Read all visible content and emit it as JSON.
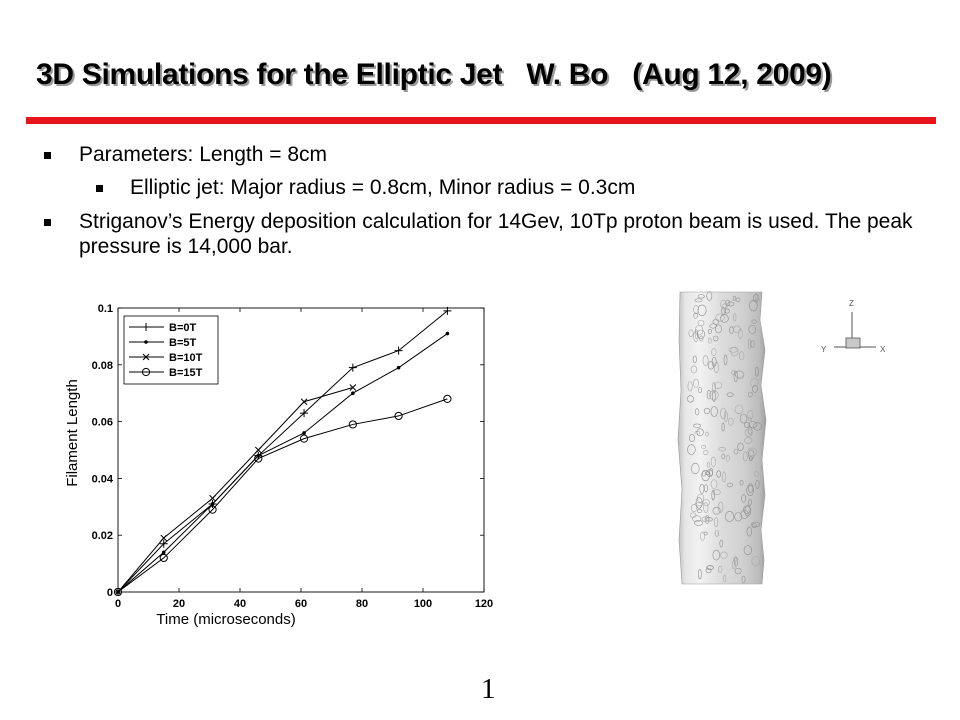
{
  "slide": {
    "title": "3D Simulations for the Elliptic Jet   W. Bo   (Aug 12, 2009)",
    "page_number": "1",
    "accent_color": "#e8141b"
  },
  "bullets": [
    {
      "level": 1,
      "text": "Parameters: Length = 8cm"
    },
    {
      "level": 2,
      "text": "Elliptic jet: Major radius = 0.8cm, Minor radius = 0.3cm"
    },
    {
      "level": 1,
      "text": "Striganov’s Energy deposition calculation for 14Gev, 10Tp proton beam is used. The peak pressure is 14,000 bar."
    }
  ],
  "axis_triad": {
    "z": "Z",
    "y": "Y",
    "x": "X"
  },
  "chart_data": {
    "type": "line",
    "title": "",
    "xlabel": "Time (microseconds)",
    "ylabel": "Filament Length",
    "xlim": [
      0,
      120
    ],
    "ylim": [
      0,
      0.1
    ],
    "xticks": [
      0,
      20,
      40,
      60,
      80,
      100,
      120
    ],
    "yticks": [
      0,
      0.02,
      0.04,
      0.06,
      0.08,
      0.1
    ],
    "xtick_labels": [
      "0",
      "20",
      "40",
      "60",
      "80",
      "100",
      "120"
    ],
    "ytick_labels": [
      "0",
      "0.02",
      "0.04",
      "0.06",
      "0.08",
      "0.1"
    ],
    "grid": false,
    "legend_position": "top-left",
    "series": [
      {
        "name": "B=0T",
        "marker": "plus",
        "x": [
          0,
          15,
          31,
          46,
          61,
          77,
          92,
          108
        ],
        "y": [
          0,
          0.017,
          0.031,
          0.048,
          0.063,
          0.079,
          0.085,
          0.099
        ]
      },
      {
        "name": "B=5T",
        "marker": "dot",
        "x": [
          0,
          15,
          31,
          46,
          61,
          77,
          92,
          108
        ],
        "y": [
          0,
          0.014,
          0.031,
          0.048,
          0.056,
          0.07,
          0.079,
          0.091
        ]
      },
      {
        "name": "B=10T",
        "marker": "x",
        "x": [
          0,
          15,
          31,
          46,
          61,
          77
        ],
        "y": [
          0,
          0.019,
          0.033,
          0.05,
          0.067,
          0.072
        ]
      },
      {
        "name": "B=15T",
        "marker": "circle",
        "x": [
          0,
          15,
          31,
          46,
          61,
          77,
          92,
          108
        ],
        "y": [
          0,
          0.012,
          0.029,
          0.047,
          0.054,
          0.059,
          0.062,
          0.068
        ]
      }
    ]
  }
}
